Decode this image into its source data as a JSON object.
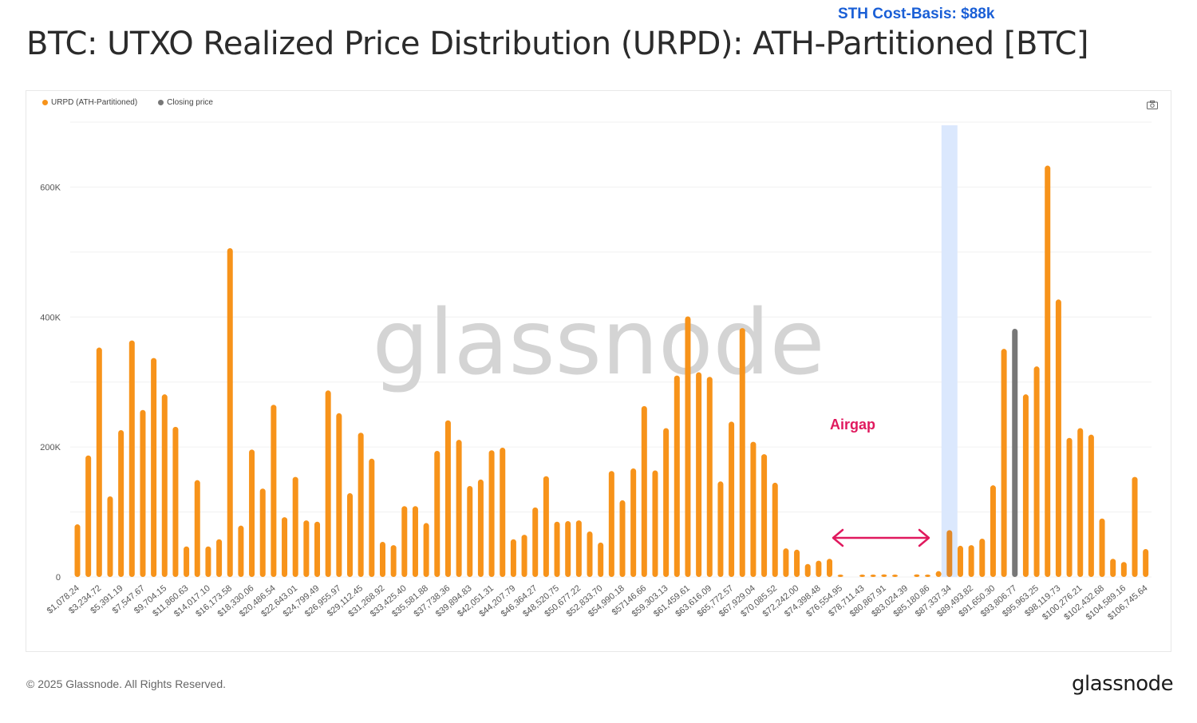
{
  "title": "BTC: UTXO Realized Price Distribution (URPD): ATH-Partitioned [BTC]",
  "footer": "© 2025 Glassnode. All Rights Reserved.",
  "brand": "glassnode",
  "watermark": "glassnode",
  "colors": {
    "urpd": "#f7931a",
    "closing": "#777777",
    "band": "#dbe8fd",
    "sth": "#1a5fd6",
    "airgap": "#e0195e"
  },
  "icons": {
    "camera": "camera-icon"
  },
  "chart_data": {
    "type": "bar",
    "title": "BTC: UTXO Realized Price Distribution (URPD): ATH-Partitioned [BTC]",
    "xlabel": "",
    "ylabel": "",
    "ylim": [
      0,
      700000
    ],
    "grid": true,
    "legend_position": "top-left",
    "legend": [
      {
        "name": "URPD (ATH-Partitioned)",
        "color": "#f7931a"
      },
      {
        "name": "Closing price",
        "color": "#777777"
      }
    ],
    "yticks": [
      {
        "value": 0,
        "label": "0"
      },
      {
        "value": 200000,
        "label": "200K"
      },
      {
        "value": 400000,
        "label": "400K"
      },
      {
        "value": 600000,
        "label": "600K"
      }
    ],
    "bin_step": 1078.24,
    "xtick_labels": [
      "$1,078.24",
      "$3,234.72",
      "$5,391.19",
      "$7,547.67",
      "$9,704.15",
      "$11,860.63",
      "$14,017.10",
      "$16,173.58",
      "$18,330.06",
      "$20,486.54",
      "$22,643.01",
      "$24,799.49",
      "$26,955.97",
      "$29,112.45",
      "$31,268.92",
      "$33,425.40",
      "$35,581.88",
      "$37,738.36",
      "$39,894.83",
      "$42,051.31",
      "$44,207.79",
      "$46,364.27",
      "$48,520.75",
      "$50,677.22",
      "$52,833.70",
      "$54,990.18",
      "$57146.66",
      "$59,303.13",
      "$61,459.61",
      "$63,616.09",
      "$65,772.57",
      "$67,929.04",
      "$70,085.52",
      "$72,242.00",
      "$74,398.48",
      "$76,554.95",
      "$78,711.43",
      "$80,867.91",
      "$83,024.39",
      "$85,180.86",
      "$87,337.34",
      "$89,493.82",
      "$91,650.30",
      "$93,806.77",
      "$95,963.25",
      "$98,119.73",
      "$100,276.21",
      "$102,432.68",
      "$104,589.16",
      "$106,745.64"
    ],
    "values": [
      81000,
      187000,
      353000,
      124000,
      226000,
      364000,
      257000,
      337000,
      281000,
      231000,
      47000,
      149000,
      47000,
      58000,
      506000,
      79000,
      196000,
      136000,
      265000,
      92000,
      154000,
      87000,
      85000,
      287000,
      252000,
      129000,
      222000,
      182000,
      54000,
      49000,
      109000,
      109000,
      83000,
      194000,
      241000,
      211000,
      140000,
      150000,
      195000,
      199000,
      58000,
      65000,
      107000,
      155000,
      85000,
      86000,
      87000,
      70000,
      53000,
      163000,
      118000,
      167000,
      263000,
      164000,
      229000,
      310000,
      401000,
      315000,
      308000,
      147000,
      239000,
      383000,
      208000,
      189000,
      145000,
      44000,
      42000,
      20000,
      25000,
      28000,
      2000,
      0,
      3000,
      1500,
      4000,
      3000,
      0,
      4000,
      3000,
      9000,
      72000,
      48000,
      49000,
      59000,
      141000,
      351000,
      382000,
      281000,
      324000,
      633000,
      427000,
      214000,
      229000,
      219000,
      90000,
      28000,
      23000,
      154000,
      43000
    ],
    "closing_price_bin_index": 86,
    "highlight_band_bin_index": 80,
    "annotations": [
      {
        "text": "STH Cost-Basis: $88k",
        "type": "band"
      },
      {
        "text": "Airgap",
        "type": "double-arrow",
        "from_bin": 70,
        "to_bin": 79
      }
    ]
  }
}
